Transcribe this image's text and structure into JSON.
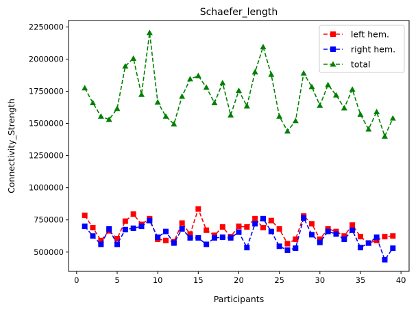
{
  "chart_data": {
    "type": "line",
    "title": "Schaefer_length",
    "xlabel": "Participants",
    "ylabel": "Connectivity_Strength",
    "xlim": [
      -1,
      41
    ],
    "ylim": [
      350000,
      2300000
    ],
    "xticks": [
      0,
      5,
      10,
      15,
      20,
      25,
      30,
      35,
      40
    ],
    "yticks": [
      500000,
      750000,
      1000000,
      1250000,
      1500000,
      1750000,
      2000000,
      2250000
    ],
    "grid": false,
    "legend_position": "top-right",
    "x": [
      1,
      2,
      3,
      4,
      5,
      6,
      7,
      8,
      9,
      10,
      11,
      12,
      13,
      14,
      15,
      16,
      17,
      18,
      19,
      20,
      21,
      22,
      23,
      24,
      25,
      26,
      27,
      28,
      29,
      30,
      31,
      32,
      33,
      34,
      35,
      36,
      37,
      38,
      39
    ],
    "series": [
      {
        "name": "left hem.",
        "color": "#ff0000",
        "marker": "square",
        "values": [
          785000,
          690000,
          590000,
          665000,
          605000,
          740000,
          795000,
          715000,
          760000,
          600000,
          590000,
          580000,
          725000,
          640000,
          835000,
          670000,
          630000,
          695000,
          620000,
          700000,
          695000,
          760000,
          690000,
          745000,
          680000,
          565000,
          600000,
          780000,
          720000,
          600000,
          680000,
          660000,
          625000,
          710000,
          620000,
          570000,
          590000,
          620000,
          625000
        ]
      },
      {
        "name": "right hem.",
        "color": "#0000ff",
        "marker": "square",
        "values": [
          700000,
          625000,
          560000,
          680000,
          560000,
          675000,
          685000,
          700000,
          745000,
          615000,
          660000,
          570000,
          680000,
          610000,
          610000,
          560000,
          610000,
          615000,
          610000,
          655000,
          535000,
          720000,
          760000,
          660000,
          545000,
          515000,
          530000,
          765000,
          635000,
          575000,
          660000,
          640000,
          600000,
          670000,
          535000,
          570000,
          615000,
          440000,
          530000
        ]
      },
      {
        "name": "total",
        "color": "#008000",
        "marker": "triangle",
        "values": [
          1775000,
          1660000,
          1555000,
          1530000,
          1615000,
          1945000,
          2005000,
          1725000,
          2205000,
          1665000,
          1555000,
          1495000,
          1710000,
          1845000,
          1870000,
          1780000,
          1660000,
          1815000,
          1565000,
          1755000,
          1635000,
          1900000,
          2095000,
          1880000,
          1555000,
          1440000,
          1520000,
          1890000,
          1785000,
          1640000,
          1800000,
          1720000,
          1620000,
          1765000,
          1570000,
          1455000,
          1590000,
          1400000,
          1540000
        ]
      }
    ]
  }
}
